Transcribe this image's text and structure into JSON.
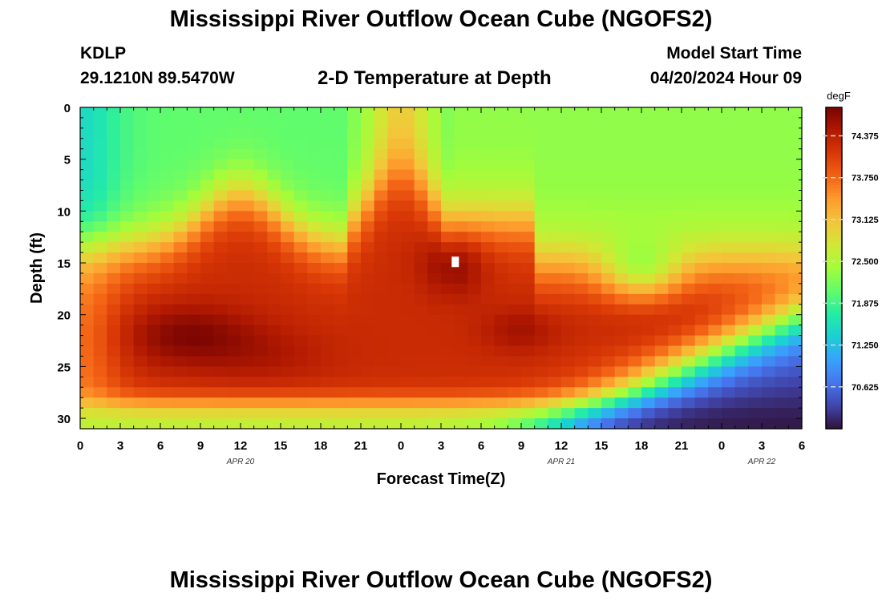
{
  "header": {
    "title": "Mississippi River Outflow Ocean Cube (NGOFS2)",
    "station": "KDLP",
    "coords": "29.1210N  89.5470W",
    "subtitle": "2-D Temperature at Depth",
    "model_start_label": "Model Start Time",
    "model_start_value": "04/20/2024 Hour 09"
  },
  "footer": {
    "title": "Mississippi River Outflow Ocean Cube (NGOFS2)"
  },
  "colors": {
    "colormap": [
      "#30123b",
      "#4145ab",
      "#4675ed",
      "#39a2fc",
      "#1bcfd4",
      "#24eca6",
      "#61fc6c",
      "#a4fc3b",
      "#d1e834",
      "#f3c63a",
      "#fe9b2d",
      "#f36315",
      "#d93806",
      "#b11901",
      "#7a0402"
    ]
  },
  "chart_data": {
    "type": "heatmap",
    "title": "2-D Temperature at Depth",
    "xlabel": "Forecast Time(Z)",
    "ylabel": "Depth (ft)",
    "xlim": [
      0,
      54
    ],
    "ylim": [
      31,
      0
    ],
    "x_ticks": [
      0,
      3,
      6,
      9,
      12,
      15,
      18,
      21,
      24,
      27,
      30,
      33,
      36,
      39,
      42,
      45,
      48,
      51,
      54
    ],
    "x_tick_labels": [
      "0",
      "3",
      "6",
      "9",
      "12",
      "15",
      "18",
      "21",
      "0",
      "3",
      "6",
      "9",
      "12",
      "15",
      "18",
      "21",
      "0",
      "3",
      "6"
    ],
    "y_ticks": [
      0,
      5,
      10,
      15,
      20,
      25,
      30
    ],
    "y_tick_labels": [
      "0",
      "5",
      "10",
      "15",
      "20",
      "25",
      "30"
    ],
    "date_labels": [
      {
        "x": 12,
        "label": "APR 20"
      },
      {
        "x": 36,
        "label": "APR 21"
      },
      {
        "x": 51,
        "label": "APR 22"
      }
    ],
    "colorbar": {
      "unit": "degF",
      "range": [
        70.0,
        74.8
      ],
      "ticks": [
        70.625,
        71.25,
        71.875,
        72.5,
        73.125,
        73.75,
        74.375
      ],
      "tick_labels": [
        "70.625",
        "71.250",
        "71.875",
        "72.500",
        "73.125",
        "73.750",
        "74.375"
      ]
    },
    "grid": {
      "x_step_hours": 1,
      "depth_levels_ft": [
        0,
        1,
        2,
        3,
        4,
        5,
        6,
        7,
        8,
        9,
        10,
        11,
        12,
        13,
        14,
        15,
        16,
        17,
        18,
        19,
        20,
        21,
        22,
        23,
        24,
        25,
        26,
        27,
        28,
        29,
        30
      ],
      "pattern_note": "approximate field reconstructed from figure",
      "features": [
        {
          "kind": "cold",
          "x": 9,
          "depth": 3,
          "value": 72.05
        },
        {
          "kind": "cold",
          "x": 45,
          "depth": 3,
          "value": 72.3
        },
        {
          "kind": "warm",
          "x": 8,
          "depth": 22,
          "value": 74.75
        },
        {
          "kind": "warm",
          "x": 28,
          "depth": 15,
          "value": 74.8
        },
        {
          "kind": "warm",
          "x": 32,
          "depth": 21.5,
          "value": 74.55
        },
        {
          "kind": "cold",
          "x": 54,
          "depth": 31,
          "value": 70.0
        }
      ]
    }
  }
}
